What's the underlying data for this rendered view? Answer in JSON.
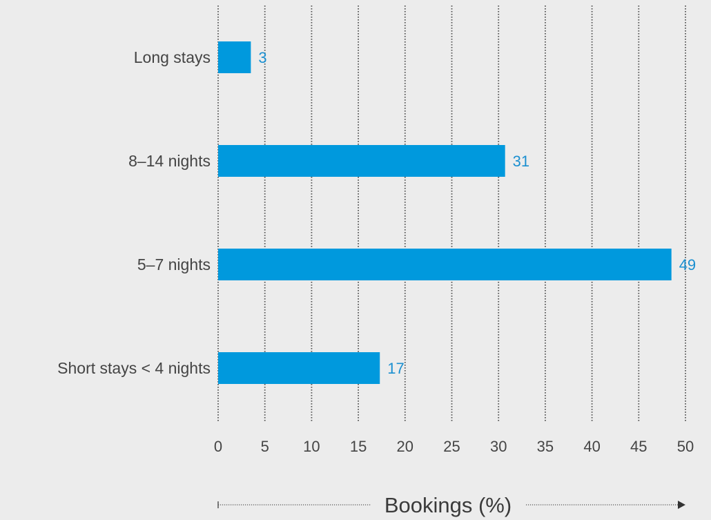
{
  "colors": {
    "background": "#ececec",
    "bar": "#0099dd",
    "value_label": "#1a8fd0",
    "text": "#444444",
    "grid": "#555555",
    "axis_title": "#3a3a3a"
  },
  "chart_data": {
    "type": "bar",
    "orientation": "horizontal",
    "title": "",
    "categories": [
      "Long stays",
      "8–14 nights",
      "5–7 nights",
      "Short stays < 4 nights"
    ],
    "values": [
      3.5,
      30.7,
      48.5,
      17.3
    ],
    "value_labels": [
      "3",
      "31",
      "49",
      "17"
    ],
    "xlabel": "Bookings (%)",
    "ylabel": "",
    "xlim": [
      0,
      50
    ],
    "xticks": [
      0,
      5,
      10,
      15,
      20,
      25,
      30,
      35,
      40,
      45,
      50
    ],
    "grid": "vertical dotted",
    "legend": "none"
  }
}
